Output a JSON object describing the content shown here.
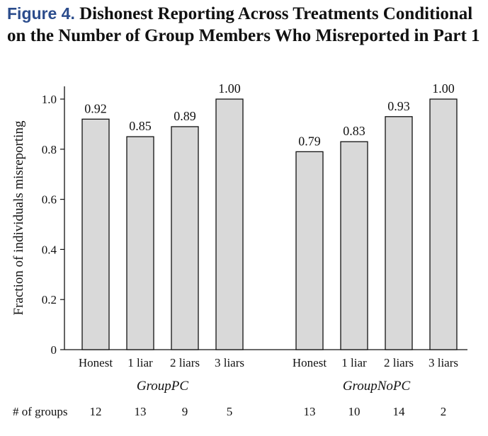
{
  "figure": {
    "label": "Figure 4.",
    "title": "Dishonest Reporting Across Treatments Conditional on the Number of Group Members Who Misreported in Part 1"
  },
  "chart_data": {
    "type": "bar",
    "ylabel": "Fraction of individuals misreporting",
    "ylim": [
      0,
      1.0
    ],
    "yticks": [
      "0",
      "0.2",
      "0.4",
      "0.6",
      "0.8",
      "1.0"
    ],
    "categories": [
      "Honest",
      "1 liar",
      "2 liars",
      "3 liars"
    ],
    "groups": [
      {
        "name": "GroupPC",
        "values": [
          0.92,
          0.85,
          0.89,
          1.0
        ],
        "labels": [
          "0.92",
          "0.85",
          "0.89",
          "1.00"
        ],
        "counts": [
          "12",
          "13",
          "9",
          "5"
        ]
      },
      {
        "name": "GroupNoPC",
        "values": [
          0.79,
          0.83,
          0.93,
          1.0
        ],
        "labels": [
          "0.79",
          "0.83",
          "0.93",
          "1.00"
        ],
        "counts": [
          "13",
          "10",
          "14",
          "2"
        ]
      }
    ],
    "counts_label": "# of groups",
    "bar_color": "#d9d9d9",
    "bar_edge": "#111111",
    "grid": false
  }
}
